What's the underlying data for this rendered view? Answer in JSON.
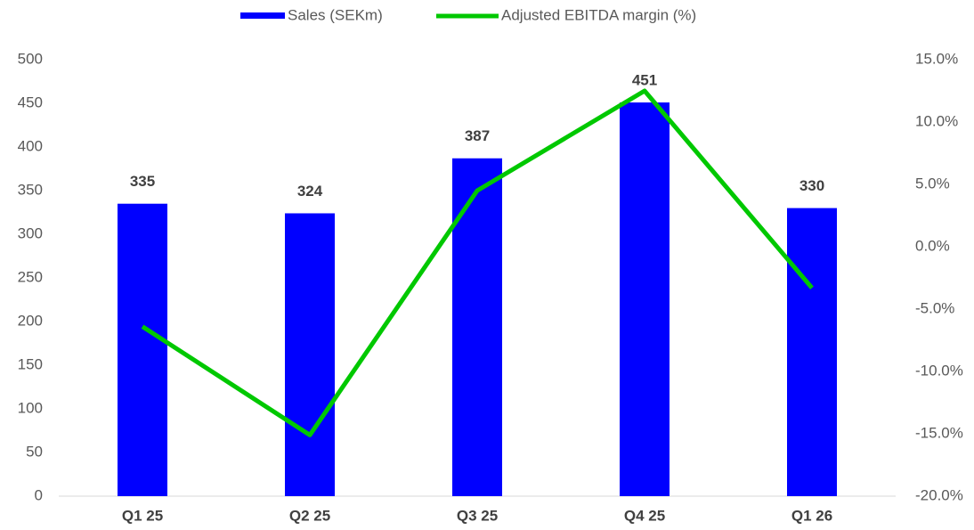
{
  "chart_data": {
    "type": "bar-line",
    "categories": [
      "Q1 25",
      "Q2 25",
      "Q3 25",
      "Q4 25",
      "Q1 26"
    ],
    "series": [
      {
        "name": "Sales (SEKm)",
        "color": "#0000ff",
        "type": "bar",
        "values": [
          335,
          324,
          387,
          451,
          330
        ]
      },
      {
        "name": "Adjusted EBITDA margin (%)",
        "color": "#00c800",
        "type": "line",
        "axis": "y2",
        "values": [
          -6.4,
          -15.1,
          4.5,
          12.5,
          -3.3
        ]
      }
    ],
    "ylim": [
      0,
      500
    ],
    "yticks": [
      0,
      50,
      100,
      150,
      200,
      250,
      300,
      350,
      400,
      450,
      500
    ],
    "y2lim": [
      -20,
      15
    ],
    "y2ticks": [
      {
        "value": -20,
        "label": "-20.0%"
      },
      {
        "value": -15,
        "label": "-15.0%"
      },
      {
        "value": -10,
        "label": "-10.0%"
      },
      {
        "value": -5,
        "label": "-5.0%"
      },
      {
        "value": 0,
        "label": "0.0%"
      },
      {
        "value": 5,
        "label": "5.0%"
      },
      {
        "value": 10,
        "label": "10.0%"
      },
      {
        "value": 15,
        "label": "15.0%"
      }
    ],
    "legend": "top",
    "grid": false
  }
}
